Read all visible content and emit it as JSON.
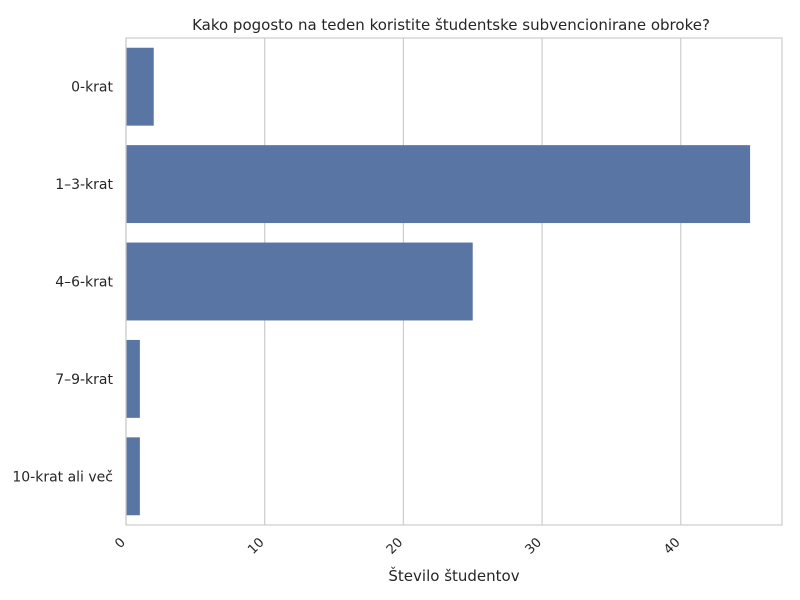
{
  "chart_data": {
    "type": "bar",
    "orientation": "horizontal",
    "title": "Kako pogosto na teden koristite študentske subvencionirane obroke?",
    "xlabel": "Število študentov",
    "ylabel": "",
    "categories": [
      "0-krat",
      "1–3-krat",
      "4–6-krat",
      "7–9-krat",
      "10-krat ali več"
    ],
    "values": [
      2,
      45,
      25,
      1,
      1
    ],
    "xlim": [
      0,
      47.3
    ],
    "xticks": [
      0,
      10,
      20,
      30,
      40
    ],
    "grid": "vertical",
    "bar_color": "#5975a4",
    "grid_color": "#cccccc",
    "axis_color": "#cccccc"
  }
}
